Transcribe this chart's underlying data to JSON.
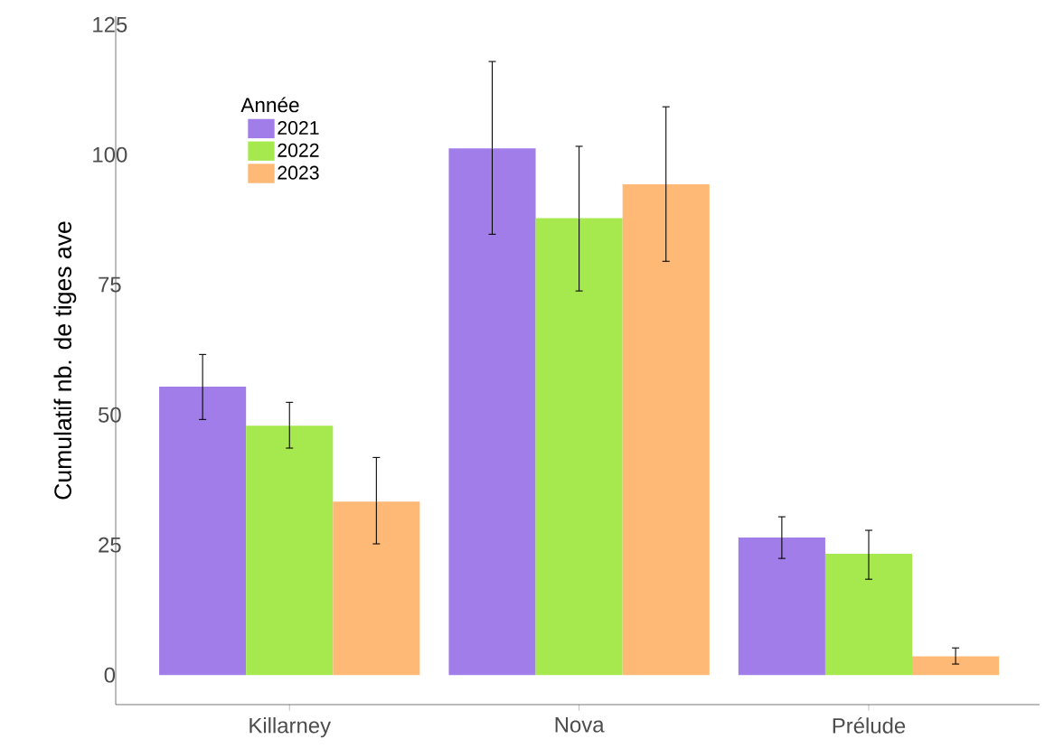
{
  "chart_data": {
    "type": "bar",
    "ylabel": "Cumulatif nb. de tiges ave",
    "legend_title": "Année",
    "legend": "top left",
    "categories": [
      "Killarney",
      "Nova",
      "Prélude"
    ],
    "ylim": [
      -5.7,
      126.6
    ],
    "yticks": [
      0,
      25,
      50,
      75,
      100,
      125
    ],
    "series": [
      {
        "name": "2021",
        "color": "#a07de8",
        "values": [
          55.4,
          101.2,
          26.4
        ],
        "errors": [
          [
            49.1,
            61.6
          ],
          [
            84.7,
            117.9
          ],
          [
            22.4,
            30.4
          ]
        ]
      },
      {
        "name": "2022",
        "color": "#a6e94f",
        "values": [
          47.9,
          87.8,
          23.3
        ],
        "errors": [
          [
            43.6,
            52.4
          ],
          [
            73.8,
            101.6
          ],
          [
            18.4,
            27.8
          ]
        ]
      },
      {
        "name": "2023",
        "color": "#fdb975",
        "values": [
          33.3,
          94.3,
          3.6
        ],
        "errors": [
          [
            25.2,
            41.8
          ],
          [
            79.5,
            109.2
          ],
          [
            2.1,
            5.2
          ]
        ]
      }
    ]
  }
}
